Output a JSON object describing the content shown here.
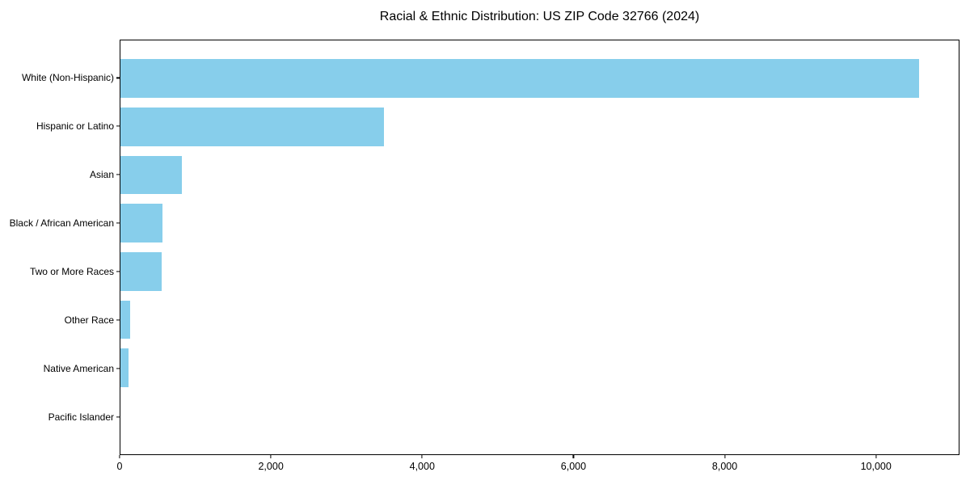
{
  "chart_data": {
    "type": "bar",
    "orientation": "horizontal",
    "title": "Racial & Ethnic Distribution: US ZIP Code 32766 (2024)",
    "categories": [
      "White (Non-Hispanic)",
      "Hispanic or Latino",
      "Asian",
      "Black / African American",
      "Two or More Races",
      "Other Race",
      "Native American",
      "Pacific Islander"
    ],
    "values": [
      10575,
      3490,
      815,
      560,
      545,
      130,
      110,
      0
    ],
    "xlabel": "",
    "ylabel": "",
    "xlim": [
      0,
      11104
    ],
    "x_ticks": [
      0,
      2000,
      4000,
      6000,
      8000,
      10000
    ],
    "x_tick_labels": [
      "0",
      "2,000",
      "4,000",
      "6,000",
      "8,000",
      "10,000"
    ],
    "bar_color": "#87CEEB",
    "grid": false,
    "legend": null,
    "frame": "full-box"
  }
}
